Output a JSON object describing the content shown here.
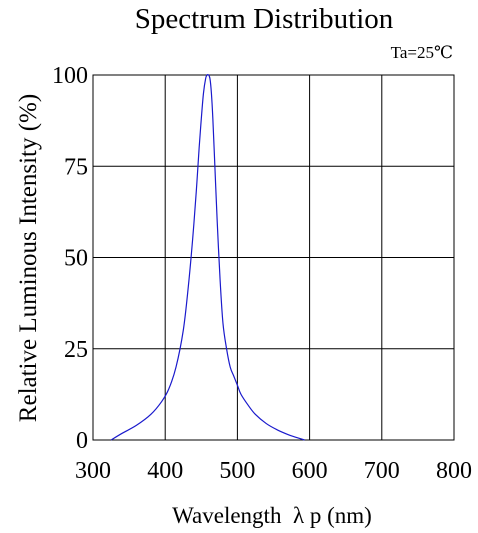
{
  "chart_data": {
    "type": "line",
    "title": "Spectrum Distribution",
    "condition": "Ta=25℃",
    "xlabel": "Wavelength  λ p (nm)",
    "ylabel": "Relative Luminous Intensity (%)",
    "xlim": [
      300,
      800
    ],
    "ylim": [
      0,
      100
    ],
    "xticks": [
      300,
      400,
      500,
      600,
      700,
      800
    ],
    "yticks": [
      0,
      25,
      50,
      75,
      100
    ],
    "xtick_labels": [
      "300",
      "400",
      "500",
      "600",
      "700",
      "800"
    ],
    "ytick_labels": [
      "0",
      "25",
      "50",
      "75",
      "100"
    ],
    "grid": true,
    "line_color": "#1a1acc",
    "series": [
      {
        "x": [
          325,
          340,
          360,
          380,
          395,
          405,
          415,
          425,
          432,
          438,
          443,
          447,
          450,
          453,
          456,
          458,
          460,
          462,
          464,
          466,
          469,
          472,
          476,
          480,
          485,
          490,
          495,
          500,
          505,
          515,
          525,
          540,
          555,
          570,
          580,
          593
        ],
        "y": [
          0,
          1.8,
          4,
          7,
          10.5,
          14,
          20,
          30,
          42,
          55,
          68,
          80,
          88,
          95,
          99,
          100,
          100,
          99,
          95,
          88,
          74,
          60,
          44,
          32,
          25,
          20,
          17.5,
          15,
          12.5,
          9.5,
          7,
          4.5,
          2.8,
          1.5,
          0.8,
          0
        ]
      }
    ]
  }
}
